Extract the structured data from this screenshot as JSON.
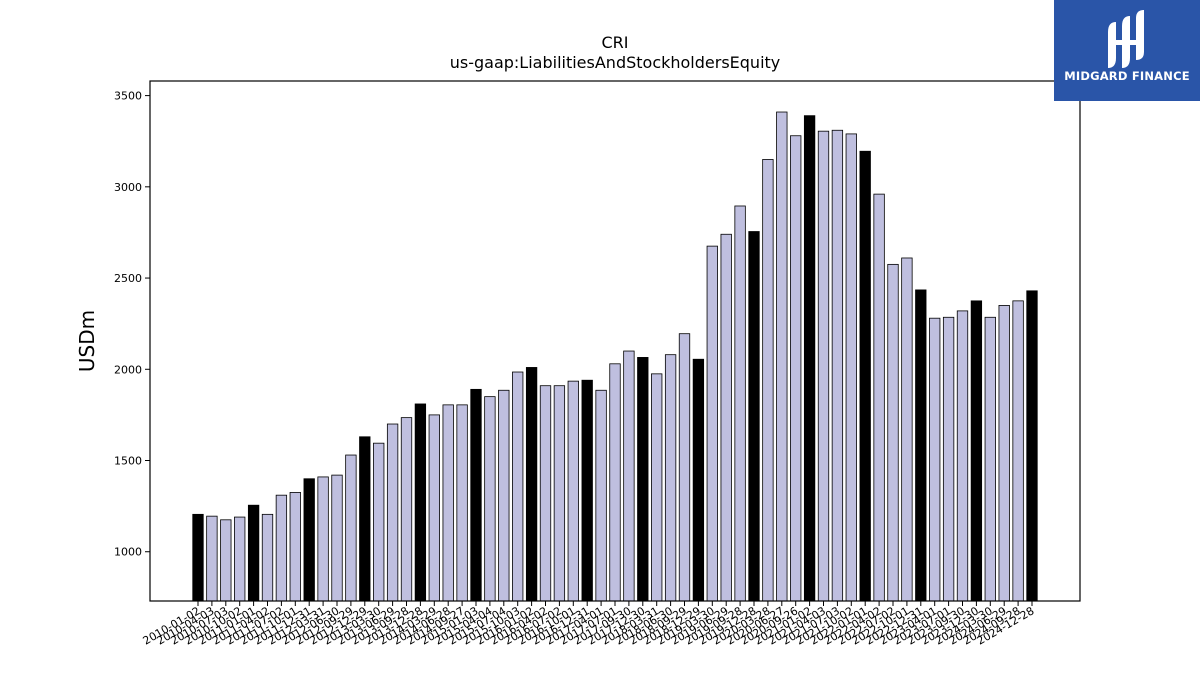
{
  "chart_data": {
    "type": "bar",
    "title": "CRI",
    "subtitle": "us-gaap:LiabilitiesAndStockholdersEquity",
    "xlabel": "",
    "ylabel": "USDm",
    "ylim": [
      730,
      3580
    ],
    "yticks": [
      1000,
      1500,
      2000,
      2500,
      3000,
      3500
    ],
    "grid": false,
    "colors": {
      "quarter": "#bfbfdf",
      "year_end": "#000000",
      "edge": "#000000"
    },
    "categories": [
      "2010-01-02",
      "2010-04-03",
      "2010-07-03",
      "2010-10-02",
      "2011-01-01",
      "2011-04-02",
      "2011-07-02",
      "2011-10-01",
      "2011-12-31",
      "2012-03-31",
      "2012-06-30",
      "2012-09-29",
      "2012-12-29",
      "2013-03-30",
      "2013-06-29",
      "2013-09-28",
      "2013-12-28",
      "2014-03-29",
      "2014-06-28",
      "2014-09-27",
      "2015-01-03",
      "2015-04-04",
      "2015-07-04",
      "2015-10-03",
      "2016-01-02",
      "2016-04-02",
      "2016-07-02",
      "2016-10-01",
      "2016-12-31",
      "2017-04-01",
      "2017-07-01",
      "2017-09-30",
      "2017-12-30",
      "2018-03-31",
      "2018-06-30",
      "2018-09-29",
      "2018-12-29",
      "2019-03-30",
      "2019-06-29",
      "2019-09-28",
      "2019-12-28",
      "2020-03-28",
      "2020-06-27",
      "2020-09-26",
      "2021-01-02",
      "2021-04-03",
      "2021-07-03",
      "2021-10-02",
      "2022-01-01",
      "2022-04-02",
      "2022-07-02",
      "2022-10-01",
      "2022-12-31",
      "2023-04-01",
      "2023-07-01",
      "2023-09-30",
      "2023-12-30",
      "2024-03-30",
      "2024-06-29",
      "2024-09-28",
      "2024-12-28"
    ],
    "values": [
      1205,
      1195,
      1175,
      1190,
      1255,
      1205,
      1310,
      1325,
      1400,
      1410,
      1420,
      1530,
      1630,
      1595,
      1700,
      1735,
      1810,
      1750,
      1805,
      1805,
      1890,
      1850,
      1885,
      1985,
      2010,
      1910,
      1910,
      1935,
      1940,
      1885,
      2030,
      2100,
      2065,
      1975,
      2080,
      2195,
      2055,
      2675,
      2740,
      2895,
      2755,
      3150,
      3410,
      3280,
      3390,
      3305,
      3310,
      3290,
      3195,
      2960,
      2575,
      2610,
      2435,
      2280,
      2285,
      2320,
      2375,
      2285,
      2350,
      2375,
      2430
    ],
    "year_end_flags": [
      1,
      0,
      0,
      0,
      1,
      0,
      0,
      0,
      1,
      0,
      0,
      0,
      1,
      0,
      0,
      0,
      1,
      0,
      0,
      0,
      1,
      0,
      0,
      0,
      1,
      0,
      0,
      0,
      1,
      0,
      0,
      0,
      1,
      0,
      0,
      0,
      1,
      0,
      0,
      0,
      1,
      0,
      0,
      0,
      1,
      0,
      0,
      0,
      1,
      0,
      0,
      0,
      1,
      0,
      0,
      0,
      1,
      0,
      0,
      0,
      1
    ]
  },
  "logo": {
    "text": "MIDGARD FINANCE",
    "background": "#2a55a8",
    "icon": "midgard-logo-icon"
  }
}
